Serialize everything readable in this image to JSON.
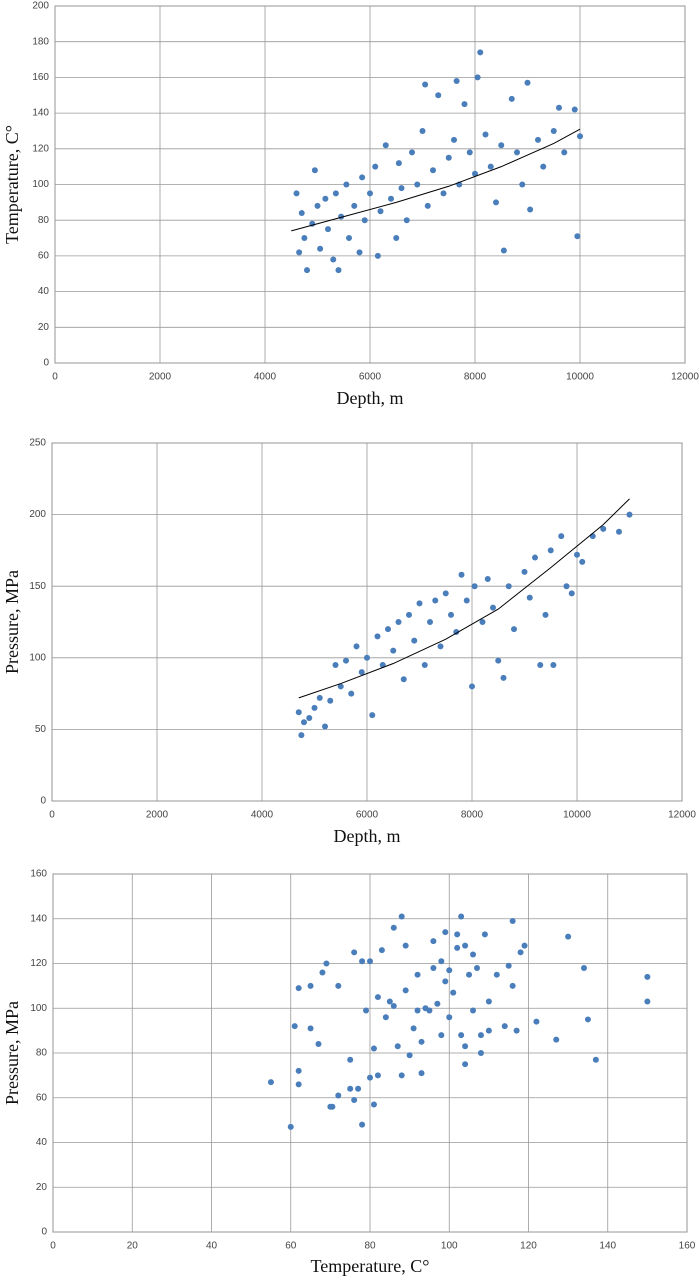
{
  "chart_data": [
    {
      "type": "scatter",
      "xlabel": "Depth, m",
      "ylabel": "Temperature, C°",
      "xlim": [
        0,
        12000
      ],
      "xticks": [
        0,
        2000,
        4000,
        6000,
        8000,
        10000,
        12000
      ],
      "ylim": [
        0,
        200
      ],
      "yticks": [
        0,
        20,
        40,
        60,
        80,
        100,
        120,
        140,
        160,
        180,
        200
      ],
      "grid": true,
      "series": [
        {
          "color": "#4a7ebb",
          "x": [
            4600,
            4650,
            4700,
            4750,
            4800,
            4900,
            4950,
            5000,
            5050,
            5150,
            5200,
            5300,
            5350,
            5400,
            5450,
            5550,
            5600,
            5700,
            5800,
            5850,
            5900,
            6000,
            6100,
            6150,
            6200,
            6300,
            6400,
            6500,
            6550,
            6600,
            6700,
            6800,
            6900,
            7000,
            7050,
            7100,
            7200,
            7300,
            7400,
            7500,
            7600,
            7650,
            7700,
            7800,
            7900,
            8000,
            8050,
            8100,
            8200,
            8300,
            8400,
            8500,
            8550,
            8700,
            8800,
            8900,
            9000,
            9050,
            9200,
            9300,
            9500,
            9600,
            9700,
            9900,
            9950,
            10000
          ],
          "values": [
            95,
            62,
            84,
            70,
            52,
            78,
            108,
            88,
            64,
            92,
            75,
            58,
            95,
            52,
            82,
            100,
            70,
            88,
            62,
            104,
            80,
            95,
            110,
            60,
            85,
            122,
            92,
            70,
            112,
            98,
            80,
            118,
            100,
            130,
            156,
            88,
            108,
            150,
            95,
            115,
            125,
            158,
            100,
            145,
            118,
            106,
            160,
            174,
            128,
            110,
            90,
            122,
            63,
            148,
            118,
            100,
            157,
            86,
            125,
            110,
            130,
            143,
            118,
            142,
            71,
            127
          ]
        }
      ],
      "trendline": {
        "color": "#000000",
        "x": [
          4500,
          5500,
          6500,
          7500,
          8500,
          9500,
          10000
        ],
        "values": [
          74,
          82,
          90,
          99,
          110,
          123,
          131
        ]
      }
    },
    {
      "type": "scatter",
      "xlabel": "Depth, m",
      "ylabel": "Pressure, MPa",
      "xlim": [
        0,
        12000
      ],
      "xticks": [
        0,
        2000,
        4000,
        6000,
        8000,
        10000,
        12000
      ],
      "ylim": [
        0,
        250
      ],
      "yticks": [
        0,
        50,
        100,
        150,
        200,
        250
      ],
      "grid": true,
      "series": [
        {
          "color": "#4a7ebb",
          "x": [
            4700,
            4750,
            4800,
            4900,
            5000,
            5100,
            5200,
            5300,
            5400,
            5500,
            5600,
            5700,
            5800,
            5900,
            6000,
            6100,
            6200,
            6300,
            6400,
            6500,
            6600,
            6700,
            6800,
            6900,
            7000,
            7100,
            7200,
            7300,
            7400,
            7500,
            7600,
            7700,
            7800,
            7900,
            8000,
            8050,
            8200,
            8300,
            8400,
            8500,
            8600,
            8700,
            8800,
            9000,
            9100,
            9200,
            9300,
            9400,
            9500,
            9550,
            9700,
            9800,
            9900,
            10000,
            10100,
            10300,
            10500,
            10800,
            11000
          ],
          "values": [
            62,
            46,
            55,
            58,
            65,
            72,
            52,
            70,
            95,
            80,
            98,
            75,
            108,
            90,
            100,
            60,
            115,
            95,
            120,
            105,
            125,
            85,
            130,
            112,
            138,
            95,
            125,
            140,
            108,
            145,
            130,
            118,
            158,
            140,
            80,
            150,
            125,
            155,
            135,
            98,
            86,
            150,
            120,
            160,
            142,
            170,
            95,
            130,
            175,
            95,
            185,
            150,
            145,
            172,
            167,
            185,
            190,
            188,
            200
          ]
        }
      ],
      "trendline": {
        "color": "#000000",
        "x": [
          4700,
          5500,
          6500,
          7500,
          8500,
          9500,
          10500,
          11000
        ],
        "values": [
          72,
          82,
          96,
          113,
          134,
          163,
          193,
          211
        ]
      }
    },
    {
      "type": "scatter",
      "xlabel": "Temperature, C°",
      "ylabel": "Pressure, MPa",
      "xlim": [
        0,
        160
      ],
      "xticks": [
        0,
        20,
        40,
        60,
        80,
        100,
        120,
        140,
        160
      ],
      "ylim": [
        0,
        160
      ],
      "yticks": [
        0,
        20,
        40,
        60,
        80,
        100,
        120,
        140,
        160
      ],
      "grid": true,
      "series": [
        {
          "color": "#4a7ebb",
          "x": [
            55,
            60,
            61,
            62,
            62,
            62,
            65,
            65,
            67,
            68,
            69,
            70,
            70.5,
            72,
            72,
            75,
            75,
            76,
            76,
            77,
            78,
            78,
            79,
            80,
            80,
            81,
            81,
            82,
            82,
            83,
            84,
            85,
            86,
            86,
            87,
            88,
            88,
            89,
            89,
            90,
            91,
            92,
            92,
            93,
            93,
            94,
            95,
            96,
            96,
            97,
            98,
            98,
            99,
            99,
            100,
            100,
            101,
            102,
            102,
            103,
            103,
            104,
            104,
            104,
            105,
            106,
            106,
            107,
            108,
            108,
            109,
            110,
            110,
            112,
            114,
            115,
            116,
            116,
            117,
            118,
            119,
            122,
            127,
            130,
            134,
            135,
            137,
            150,
            150
          ],
          "values": [
            67,
            47,
            92,
            109,
            72,
            66,
            110,
            91,
            84,
            116,
            120,
            56,
            56,
            61,
            110,
            64,
            77,
            59,
            125,
            64,
            48,
            121,
            99,
            121,
            69,
            82,
            57,
            105,
            70,
            126,
            96,
            103,
            136,
            101,
            83,
            141,
            70,
            128,
            108,
            79,
            91,
            99,
            115,
            71,
            85,
            100,
            99,
            130,
            118,
            102,
            88,
            121,
            112,
            134,
            117,
            96,
            107,
            127,
            133,
            88,
            141,
            75,
            83,
            128,
            115,
            99,
            124,
            118,
            80,
            88,
            133,
            103,
            90,
            115,
            92,
            119,
            110,
            139,
            90,
            125,
            128,
            94,
            86,
            132,
            118,
            95,
            77,
            114,
            103
          ]
        }
      ]
    }
  ]
}
